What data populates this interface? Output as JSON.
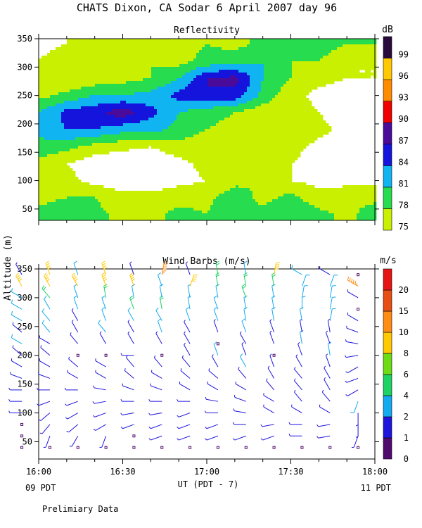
{
  "title": "CHATS Dixon, CA  Sodar   6 April 2007  day  96",
  "ylabel": "Altitude (m)",
  "xlabel": "UT  (PDT - 7)",
  "footer_left": "09 PDT",
  "footer_right": "11 PDT",
  "note": "Prelimiary Data",
  "chart_data": [
    {
      "type": "heatmap",
      "title": "Reflectivity",
      "colorbar_unit": "dB",
      "x_ticks": [
        "16:00",
        "16:30",
        "17:00",
        "17:30",
        "18:00"
      ],
      "x_range": [
        "16:00",
        "18:00"
      ],
      "y_ticks": [
        50,
        100,
        150,
        200,
        250,
        300,
        350
      ],
      "ylim": [
        30,
        350
      ],
      "levels": [
        75,
        78,
        81,
        84,
        87,
        90,
        93,
        96,
        99
      ],
      "colors": [
        "#c8f000",
        "#28dc50",
        "#10b4f0",
        "#1414dc",
        "#4a0a9a",
        "#f00000",
        "#ff8c00",
        "#ffc800",
        "#280a3c"
      ],
      "times_min": [
        0,
        10,
        20,
        30,
        40,
        50,
        60,
        70,
        80,
        90,
        100,
        110,
        120
      ],
      "altitudes": [
        40,
        70,
        100,
        130,
        160,
        190,
        220,
        250,
        280,
        310,
        340
      ],
      "values": [
        [
          79,
          80,
          79,
          77,
          77,
          79,
          78,
          81,
          79,
          81,
          79,
          77,
          80
        ],
        [
          77,
          78,
          78,
          76,
          76,
          77,
          77,
          80,
          77,
          79,
          76,
          77,
          77
        ],
        [
          77,
          76,
          74,
          73,
          73,
          74,
          75,
          77,
          78,
          75,
          74,
          74,
          74
        ],
        [
          77,
          75,
          73,
          72,
          72,
          74,
          76,
          76,
          77,
          75,
          74,
          72,
          72
        ],
        [
          80,
          79,
          77,
          76,
          75,
          77,
          76,
          75,
          76,
          76,
          74,
          72,
          72
        ],
        [
          82,
          84,
          84,
          82,
          82,
          80,
          78,
          77,
          76,
          78,
          76,
          74,
          74
        ],
        [
          81,
          85,
          86,
          89,
          85,
          81,
          79,
          78,
          76,
          77,
          75,
          73,
          74
        ],
        [
          77,
          79,
          81,
          81,
          82,
          85,
          87,
          86,
          80,
          76,
          74,
          73,
          74
        ],
        [
          75,
          75,
          76,
          77,
          78,
          81,
          87,
          88,
          81,
          78,
          76,
          75,
          75
        ],
        [
          75,
          77,
          78,
          78,
          78,
          77,
          79,
          80,
          81,
          78,
          78,
          75,
          75
        ],
        [
          74,
          75,
          76,
          75,
          75,
          77,
          78,
          77,
          79,
          79,
          80,
          78,
          78
        ]
      ]
    },
    {
      "type": "scatter",
      "title": "Wind Barbs (m/s)",
      "colorbar_unit": "m/s",
      "x_ticks": [
        "16:00",
        "16:30",
        "17:00",
        "17:30",
        "18:00"
      ],
      "x_range": [
        "16:00",
        "18:00"
      ],
      "y_ticks": [
        50,
        100,
        150,
        200,
        250,
        300,
        350
      ],
      "ylim": [
        20,
        350
      ],
      "speed_levels": [
        0,
        1,
        2,
        4,
        6,
        8,
        10,
        15,
        20
      ],
      "speed_colors": [
        "#500a6e",
        "#1e14dc",
        "#14aaf0",
        "#1ed264",
        "#6edc14",
        "#ffc800",
        "#ff8c14",
        "#e65014",
        "#e61414"
      ],
      "times_min": [
        -6,
        4,
        14,
        24,
        34,
        44,
        54,
        64,
        74,
        84,
        94,
        104,
        114
      ],
      "altitudes": [
        40,
        60,
        80,
        100,
        120,
        140,
        160,
        180,
        200,
        220,
        240,
        260,
        280,
        300,
        320,
        340
      ],
      "speed": [
        [
          0.3,
          0.3,
          0.3,
          0.3,
          0.3,
          0.3,
          0.3,
          0.3,
          0.3,
          0.3,
          0.3,
          0.3,
          0.3
        ],
        [
          0.3,
          1.2,
          1.2,
          1.2,
          0.3,
          1.2,
          1.2,
          1.2,
          1.2,
          1.2,
          1.2,
          1.2,
          1.2
        ],
        [
          0.3,
          1.2,
          1.2,
          1.2,
          1.2,
          1.2,
          1.2,
          1.2,
          1.2,
          1.2,
          1.2,
          1.2,
          1.2
        ],
        [
          1.2,
          1.2,
          1.2,
          1.2,
          1.2,
          1.2,
          1.2,
          1.2,
          1.2,
          1.2,
          1.2,
          1.2,
          1.2
        ],
        [
          1.2,
          1.2,
          1.2,
          1.2,
          1.2,
          1.2,
          1.2,
          1.2,
          1.2,
          1.2,
          1.2,
          1.2,
          2.5
        ],
        [
          1.2,
          1.2,
          1.2,
          1.2,
          1.2,
          1.2,
          1.2,
          1.2,
          1.2,
          1.2,
          1.2,
          1.2,
          1.2
        ],
        [
          1.2,
          1.2,
          1.2,
          1.2,
          1.2,
          1.2,
          1.2,
          1.2,
          1.2,
          1.2,
          1.2,
          1.2,
          1.2
        ],
        [
          1.2,
          1.2,
          1.2,
          1.2,
          1.2,
          1.2,
          1.2,
          1.2,
          2.5,
          1.2,
          1.2,
          1.2,
          1.2
        ],
        [
          1.2,
          1.2,
          0.3,
          0.3,
          1.2,
          0.3,
          1.2,
          2.5,
          1.2,
          0.3,
          1.2,
          2.5,
          1.2
        ],
        [
          2.5,
          1.2,
          1.2,
          1.2,
          1.2,
          1.2,
          1.2,
          0.3,
          1.2,
          1.2,
          2.5,
          1.2,
          1.2
        ],
        [
          1.2,
          2.5,
          1.2,
          2.5,
          1.2,
          2.5,
          1.2,
          1.2,
          2.5,
          1.2,
          1.2,
          1.2,
          1.2
        ],
        [
          2.5,
          2.5,
          1.2,
          2.5,
          2.5,
          2.5,
          2.5,
          2.5,
          2.5,
          2.5,
          2.5,
          2.5,
          1.2
        ],
        [
          2.5,
          2.5,
          2.5,
          2.5,
          4.5,
          4.5,
          2.5,
          2.5,
          2.5,
          2.5,
          2.5,
          2.5,
          0.3
        ],
        [
          2.5,
          4.5,
          2.5,
          4.5,
          2.5,
          2.5,
          2.5,
          2.5,
          4.5,
          2.5,
          2.5,
          2.5,
          1.2
        ],
        [
          8,
          8,
          8,
          8,
          8,
          2.5,
          8,
          4.5,
          4.5,
          4.5,
          2.5,
          2.5,
          11
        ],
        [
          1.2,
          8,
          2.5,
          8,
          1.2,
          11,
          1.2,
          4.5,
          2.5,
          8,
          2.5,
          1.2,
          0.3
        ]
      ],
      "direction_deg": [
        [
          0,
          0,
          0,
          0,
          0,
          0,
          0,
          0,
          0,
          0,
          0,
          0,
          0
        ],
        [
          0,
          200,
          210,
          200,
          0,
          250,
          250,
          250,
          250,
          250,
          270,
          260,
          200
        ],
        [
          0,
          220,
          230,
          240,
          250,
          250,
          250,
          250,
          270,
          260,
          270,
          260,
          180
        ],
        [
          270,
          230,
          240,
          250,
          260,
          260,
          250,
          270,
          280,
          300,
          300,
          300,
          180
        ],
        [
          270,
          250,
          250,
          260,
          270,
          270,
          270,
          280,
          290,
          300,
          320,
          320,
          200
        ],
        [
          270,
          270,
          270,
          280,
          290,
          290,
          300,
          300,
          300,
          320,
          320,
          330,
          240
        ],
        [
          290,
          290,
          300,
          300,
          310,
          300,
          310,
          310,
          320,
          330,
          320,
          330,
          250
        ],
        [
          300,
          300,
          310,
          300,
          320,
          320,
          320,
          330,
          330,
          340,
          330,
          340,
          240
        ],
        [
          310,
          310,
          0,
          0,
          270,
          0,
          330,
          340,
          340,
          0,
          340,
          350,
          260
        ],
        [
          300,
          300,
          320,
          330,
          330,
          330,
          330,
          0,
          330,
          340,
          350,
          340,
          280
        ],
        [
          310,
          320,
          330,
          320,
          330,
          340,
          330,
          340,
          340,
          340,
          350,
          350,
          290
        ],
        [
          300,
          320,
          330,
          340,
          330,
          330,
          340,
          340,
          350,
          350,
          350,
          10,
          300
        ],
        [
          300,
          330,
          340,
          340,
          340,
          350,
          350,
          340,
          350,
          350,
          0,
          10,
          0
        ],
        [
          300,
          320,
          340,
          350,
          350,
          350,
          350,
          350,
          340,
          350,
          10,
          10,
          300
        ],
        [
          330,
          330,
          330,
          340,
          340,
          340,
          20,
          350,
          350,
          350,
          20,
          20,
          300
        ],
        [
          330,
          340,
          340,
          340,
          340,
          10,
          340,
          350,
          350,
          10,
          300,
          300,
          0
        ]
      ]
    }
  ]
}
